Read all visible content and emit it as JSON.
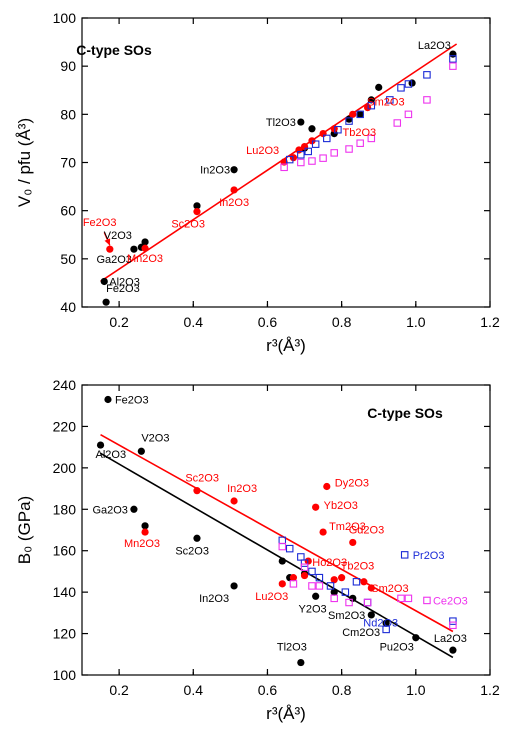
{
  "colors": {
    "black": "#000000",
    "red": "#ff0000",
    "blue": "#1a2ad6",
    "magenta": "#ee33ee"
  },
  "chart_data": [
    {
      "type": "scatter",
      "title": "C-type SOs",
      "xlabel": "r³(Å³)",
      "ylabel": "V₀ / pfu (Å³)",
      "xlim": [
        0.1,
        1.2
      ],
      "ylim": [
        40,
        100
      ],
      "xticks": [
        "0.2",
        "0.4",
        "0.6",
        "0.8",
        "1.0",
        "1.2"
      ],
      "yticks": [
        "40",
        "50",
        "60",
        "70",
        "80",
        "90",
        "100"
      ],
      "series": [
        {
          "marker": "filled-circle",
          "color": "black",
          "points": [
            [
              0.165,
              41
            ],
            [
              0.16,
              45.3
            ],
            [
              0.24,
              52
            ],
            [
              0.26,
              52.4
            ],
            [
              0.27,
              53.5
            ],
            [
              0.41,
              61
            ],
            [
              0.51,
              68.5
            ],
            [
              0.69,
              78.4
            ],
            [
              0.72,
              77
            ],
            [
              0.7,
              73
            ],
            [
              0.78,
              76
            ],
            [
              0.82,
              79
            ],
            [
              0.85,
              80
            ],
            [
              0.88,
              83
            ],
            [
              0.9,
              85.6
            ],
            [
              0.99,
              86.5
            ],
            [
              1.1,
              92.5
            ]
          ]
        },
        {
          "marker": "filled-circle",
          "color": "red",
          "points": [
            [
              0.175,
              52
            ],
            [
              0.27,
              52.2
            ],
            [
              0.41,
              59.8
            ],
            [
              0.51,
              64.3
            ],
            [
              0.645,
              70.1
            ],
            [
              0.67,
              71
            ],
            [
              0.685,
              72.6
            ],
            [
              0.7,
              73.3
            ],
            [
              0.72,
              74.5
            ],
            [
              0.75,
              76
            ],
            [
              0.78,
              77
            ],
            [
              0.83,
              80
            ],
            [
              0.87,
              81.4
            ]
          ]
        },
        {
          "marker": "open-square",
          "color": "blue",
          "points": [
            [
              0.66,
              70.6
            ],
            [
              0.69,
              71.6
            ],
            [
              0.71,
              72.3
            ],
            [
              0.73,
              73.8
            ],
            [
              0.76,
              75
            ],
            [
              0.79,
              76.8
            ],
            [
              0.82,
              78.6
            ],
            [
              0.85,
              80
            ],
            [
              0.88,
              81.8
            ],
            [
              0.93,
              83
            ],
            [
              0.96,
              85.5
            ],
            [
              0.98,
              86.3
            ],
            [
              1.03,
              88.2
            ],
            [
              1.1,
              91.5
            ]
          ]
        },
        {
          "marker": "open-square",
          "color": "magenta",
          "points": [
            [
              0.645,
              69
            ],
            [
              0.69,
              70
            ],
            [
              0.72,
              70.3
            ],
            [
              0.75,
              70.9
            ],
            [
              0.78,
              72
            ],
            [
              0.82,
              72.8
            ],
            [
              0.85,
              74
            ],
            [
              0.88,
              75
            ],
            [
              0.95,
              78.2
            ],
            [
              0.98,
              80
            ],
            [
              1.03,
              83
            ],
            [
              1.1,
              90
            ]
          ]
        }
      ],
      "fit_lines": [
        {
          "color": "red",
          "from": [
            0.15,
            45.3
          ],
          "to": [
            1.11,
            94.6
          ]
        }
      ],
      "annotations": [
        {
          "text": "La2O3",
          "x": 1.1,
          "y": 92.5,
          "color": "black",
          "anchor": "end",
          "dx": -2,
          "dy": -5
        },
        {
          "text": "Tl2O3",
          "x": 0.69,
          "y": 78.4,
          "color": "black",
          "anchor": "end",
          "dx": -5,
          "dy": 4
        },
        {
          "text": "Sm2O3",
          "x": 0.88,
          "y": 82.5,
          "color": "red",
          "anchor": "start",
          "dx": -4,
          "dy": 3
        },
        {
          "text": "Tb2O3",
          "x": 0.77,
          "y": 77,
          "color": "red",
          "anchor": "start",
          "dx": 12,
          "dy": 7
        },
        {
          "text": "Lu2O3",
          "x": 0.645,
          "y": 70.1,
          "color": "red",
          "anchor": "end",
          "dx": -5,
          "dy": -8
        },
        {
          "text": "In2O3",
          "x": 0.51,
          "y": 68.5,
          "color": "black",
          "anchor": "end",
          "dx": -4,
          "dy": 4
        },
        {
          "text": "In2O3",
          "x": 0.51,
          "y": 64.3,
          "color": "red",
          "anchor": "end",
          "dx": 15,
          "dy": 16
        },
        {
          "text": "Sc2O3",
          "x": 0.41,
          "y": 59.8,
          "color": "red",
          "anchor": "end",
          "dx": 8,
          "dy": 16
        },
        {
          "text": "Fe2O3",
          "x": 0.175,
          "y": 52,
          "color": "red",
          "anchor": "start",
          "dx": -27,
          "dy": -23
        },
        {
          "text": "V2O3",
          "x": 0.24,
          "y": 52,
          "color": "black",
          "anchor": "end",
          "dx": -2,
          "dy": -10
        },
        {
          "text": "Ga2O3",
          "x": 0.24,
          "y": 52,
          "color": "black",
          "anchor": "end",
          "dx": -2,
          "dy": 14
        },
        {
          "text": "Mn2O3",
          "x": 0.27,
          "y": 52.2,
          "color": "red",
          "anchor": "end",
          "dx": 18,
          "dy": 14
        },
        {
          "text": "Al2O3",
          "x": 0.16,
          "y": 45.3,
          "color": "black",
          "anchor": "start",
          "dx": 5,
          "dy": 4
        },
        {
          "text": "Fe2O3",
          "x": 0.165,
          "y": 41,
          "color": "black",
          "anchor": "start",
          "dx": 0,
          "dy": -10
        }
      ],
      "arrow": {
        "color": "red",
        "from": [
          0.16,
          55.5
        ],
        "to": [
          0.175,
          52.8
        ]
      }
    },
    {
      "type": "scatter",
      "title": "C-type SOs",
      "xlabel": "r³(Å³)",
      "ylabel": "B₀ (GPa)",
      "xlim": [
        0.1,
        1.2
      ],
      "ylim": [
        100,
        240
      ],
      "xticks": [
        "0.2",
        "0.4",
        "0.6",
        "0.8",
        "1.0",
        "1.2"
      ],
      "yticks": [
        "100",
        "120",
        "140",
        "160",
        "180",
        "200",
        "220",
        "240"
      ],
      "series": [
        {
          "marker": "filled-circle",
          "color": "black",
          "points": [
            [
              0.17,
              233
            ],
            [
              0.15,
              211
            ],
            [
              0.26,
              208
            ],
            [
              0.24,
              180
            ],
            [
              0.27,
              172
            ],
            [
              0.41,
              166
            ],
            [
              0.51,
              143
            ],
            [
              0.64,
              155
            ],
            [
              0.69,
              106
            ],
            [
              0.73,
              138
            ],
            [
              0.78,
              140
            ],
            [
              0.83,
              137
            ],
            [
              0.88,
              129
            ],
            [
              0.92,
              125
            ],
            [
              1.0,
              118
            ],
            [
              1.1,
              112
            ],
            [
              0.66,
              147
            ],
            [
              0.7,
              149
            ]
          ]
        },
        {
          "marker": "filled-circle",
          "color": "red",
          "points": [
            [
              0.27,
              169
            ],
            [
              0.41,
              189
            ],
            [
              0.51,
              184
            ],
            [
              0.64,
              144
            ],
            [
              0.67,
              147
            ],
            [
              0.7,
              148
            ],
            [
              0.71,
              155
            ],
            [
              0.73,
              181
            ],
            [
              0.75,
              169
            ],
            [
              0.76,
              191
            ],
            [
              0.78,
              146
            ],
            [
              0.8,
              147
            ],
            [
              0.83,
              164
            ],
            [
              0.86,
              145
            ],
            [
              0.88,
              142
            ]
          ]
        },
        {
          "marker": "open-square",
          "color": "blue",
          "points": [
            [
              0.64,
              165
            ],
            [
              0.66,
              161
            ],
            [
              0.69,
              157
            ],
            [
              0.7,
              154
            ],
            [
              0.72,
              150
            ],
            [
              0.74,
              147
            ],
            [
              0.77,
              143
            ],
            [
              0.81,
              140
            ],
            [
              0.84,
              145
            ],
            [
              0.87,
              135
            ],
            [
              0.92,
              122
            ],
            [
              0.97,
              158
            ],
            [
              1.1,
              126
            ]
          ]
        },
        {
          "marker": "open-square",
          "color": "magenta",
          "points": [
            [
              0.64,
              162
            ],
            [
              0.67,
              144
            ],
            [
              0.7,
              152
            ],
            [
              0.72,
              143
            ],
            [
              0.74,
              143
            ],
            [
              0.78,
              137
            ],
            [
              0.82,
              135
            ],
            [
              0.87,
              135
            ],
            [
              0.96,
              137
            ],
            [
              0.98,
              137
            ],
            [
              1.03,
              136
            ],
            [
              1.1,
              124
            ]
          ]
        }
      ],
      "fit_lines": [
        {
          "color": "red",
          "from": [
            0.15,
            216
          ],
          "to": [
            1.1,
            121
          ]
        },
        {
          "color": "black",
          "from": [
            0.15,
            207
          ],
          "to": [
            1.1,
            108.5
          ]
        }
      ],
      "annotations": [
        {
          "text": "Fe2O3",
          "x": 0.17,
          "y": 233,
          "color": "black",
          "anchor": "start",
          "dx": 7,
          "dy": 4
        },
        {
          "text": "Al2O3",
          "x": 0.15,
          "y": 211,
          "color": "black",
          "anchor": "start",
          "dx": -5,
          "dy": 13
        },
        {
          "text": "V2O3",
          "x": 0.26,
          "y": 208,
          "color": "black",
          "anchor": "start",
          "dx": 0,
          "dy": -10
        },
        {
          "text": "Ga2O3",
          "x": 0.24,
          "y": 180,
          "color": "black",
          "anchor": "end",
          "dx": -6,
          "dy": 4
        },
        {
          "text": "Mn2O3",
          "x": 0.27,
          "y": 169,
          "color": "red",
          "anchor": "end",
          "dx": 15,
          "dy": 15
        },
        {
          "text": "Sc2O3",
          "x": 0.41,
          "y": 189,
          "color": "red",
          "anchor": "end",
          "dx": 22,
          "dy": -9
        },
        {
          "text": "Sc2O3",
          "x": 0.41,
          "y": 166,
          "color": "black",
          "anchor": "end",
          "dx": 12,
          "dy": 16
        },
        {
          "text": "In2O3",
          "x": 0.51,
          "y": 184,
          "color": "red",
          "anchor": "end",
          "dx": 23,
          "dy": -9
        },
        {
          "text": "In2O3",
          "x": 0.51,
          "y": 143,
          "color": "black",
          "anchor": "end",
          "dx": -5,
          "dy": 16
        },
        {
          "text": "Dy2O3",
          "x": 0.76,
          "y": 191,
          "color": "red",
          "anchor": "start",
          "dx": 8,
          "dy": 0
        },
        {
          "text": "Yb2O3",
          "x": 0.73,
          "y": 181,
          "color": "red",
          "anchor": "start",
          "dx": 8,
          "dy": 2
        },
        {
          "text": "Tm2O3",
          "x": 0.75,
          "y": 169,
          "color": "red",
          "anchor": "start",
          "dx": 6,
          "dy": -2
        },
        {
          "text": "Gd2O3",
          "x": 0.83,
          "y": 164,
          "color": "red",
          "anchor": "start",
          "dx": -4,
          "dy": -9
        },
        {
          "text": "Ho2O3",
          "x": 0.71,
          "y": 155,
          "color": "red",
          "anchor": "start",
          "dx": 4,
          "dy": 5
        },
        {
          "text": "Tb2O3",
          "x": 0.8,
          "y": 147,
          "color": "red",
          "anchor": "start",
          "dx": -1,
          "dy": -8
        },
        {
          "text": "Pr2O3",
          "x": 0.97,
          "y": 158,
          "color": "blue",
          "anchor": "start",
          "dx": 8,
          "dy": 4
        },
        {
          "text": "Sm2O3",
          "x": 0.88,
          "y": 142,
          "color": "red",
          "anchor": "start",
          "dx": 0,
          "dy": 4
        },
        {
          "text": "Lu2O3",
          "x": 0.64,
          "y": 144,
          "color": "red",
          "anchor": "end",
          "dx": 6,
          "dy": 16
        },
        {
          "text": "Y2O3",
          "x": 0.73,
          "y": 138,
          "color": "black",
          "anchor": "end",
          "dx": 11,
          "dy": 16
        },
        {
          "text": "Ce2O3",
          "x": 1.03,
          "y": 136,
          "color": "magenta",
          "anchor": "start",
          "dx": 6,
          "dy": 4
        },
        {
          "text": "Sm2O3",
          "x": 0.88,
          "y": 129,
          "color": "black",
          "anchor": "end",
          "dx": -6,
          "dy": 4
        },
        {
          "text": "Nd2O3",
          "x": 0.92,
          "y": 122,
          "color": "blue",
          "anchor": "end",
          "dx": 12,
          "dy": -3
        },
        {
          "text": "Cm2O3",
          "x": 0.92,
          "y": 125,
          "color": "black",
          "anchor": "end",
          "dx": -6,
          "dy": 13
        },
        {
          "text": "Pu2O3",
          "x": 1.0,
          "y": 118,
          "color": "black",
          "anchor": "end",
          "dx": -2,
          "dy": 13
        },
        {
          "text": "La2O3",
          "x": 1.1,
          "y": 112,
          "color": "black",
          "anchor": "end",
          "dx": 14,
          "dy": -8
        },
        {
          "text": "Tl2O3",
          "x": 0.69,
          "y": 106,
          "color": "black",
          "anchor": "end",
          "dx": 6,
          "dy": -12
        }
      ]
    }
  ]
}
